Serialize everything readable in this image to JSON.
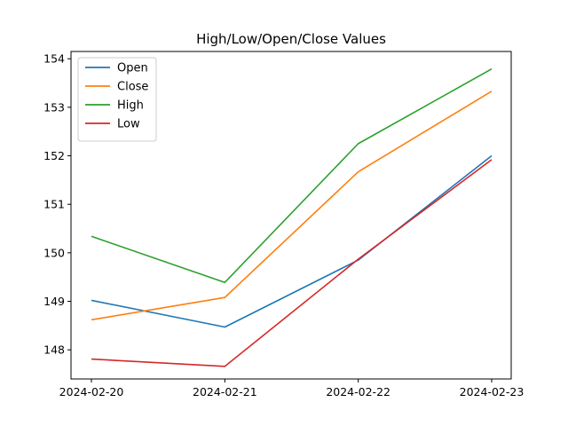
{
  "chart_data": {
    "type": "line",
    "title": "High/Low/Open/Close Values",
    "xlabel": "",
    "ylabel": "",
    "x": [
      "2024-02-20",
      "2024-02-21",
      "2024-02-22",
      "2024-02-23"
    ],
    "ylim": [
      147.4,
      154.15
    ],
    "yticks": [
      148,
      149,
      150,
      151,
      152,
      153,
      154
    ],
    "grid": false,
    "legend_position": "upper-left",
    "series": [
      {
        "name": "Open",
        "color": "#1f77b4",
        "values": [
          149.02,
          148.47,
          149.85,
          152.0
        ]
      },
      {
        "name": "Close",
        "color": "#ff7f0e",
        "values": [
          148.62,
          149.08,
          151.67,
          153.33
        ]
      },
      {
        "name": "High",
        "color": "#2ca02c",
        "values": [
          150.34,
          149.39,
          152.25,
          153.79
        ]
      },
      {
        "name": "Low",
        "color": "#d62728",
        "values": [
          147.81,
          147.66,
          149.87,
          151.92
        ]
      }
    ]
  }
}
